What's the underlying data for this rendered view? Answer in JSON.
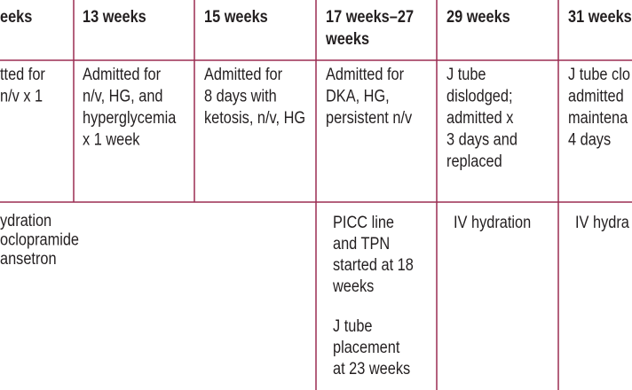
{
  "table": {
    "header": [
      [
        "eeks"
      ],
      [
        "13 weeks"
      ],
      [
        "15 weeks"
      ],
      [
        "17 weeks–27",
        "weeks"
      ],
      [
        "29 weeks"
      ],
      [
        "31 weeks"
      ]
    ],
    "rows": [
      [
        [
          "tted for",
          "n/v x 1"
        ],
        [
          "Admitted for",
          "n/v, HG, and",
          "hyperglycemia",
          "x 1 week"
        ],
        [
          "Admitted for",
          "8 days with",
          "ketosis, n/v, HG"
        ],
        [
          "Admitted for",
          "DKA, HG,",
          "persistent n/v"
        ],
        [
          "J tube",
          "dislodged;",
          "admitted x",
          "3 days and",
          "replaced"
        ],
        [
          "J tube clo",
          "admitted",
          "maintena",
          "4 days"
        ]
      ],
      [
        [
          [
            "ydration",
            "oclopramide",
            "ansetron"
          ]
        ],
        [
          [
            "PICC line",
            "and TPN",
            "started at 18",
            "weeks"
          ],
          [
            "J tube",
            "placement",
            "at 23 weeks"
          ]
        ],
        [
          [
            "IV hydration"
          ]
        ],
        [
          [
            "IV hydra"
          ]
        ]
      ]
    ]
  }
}
